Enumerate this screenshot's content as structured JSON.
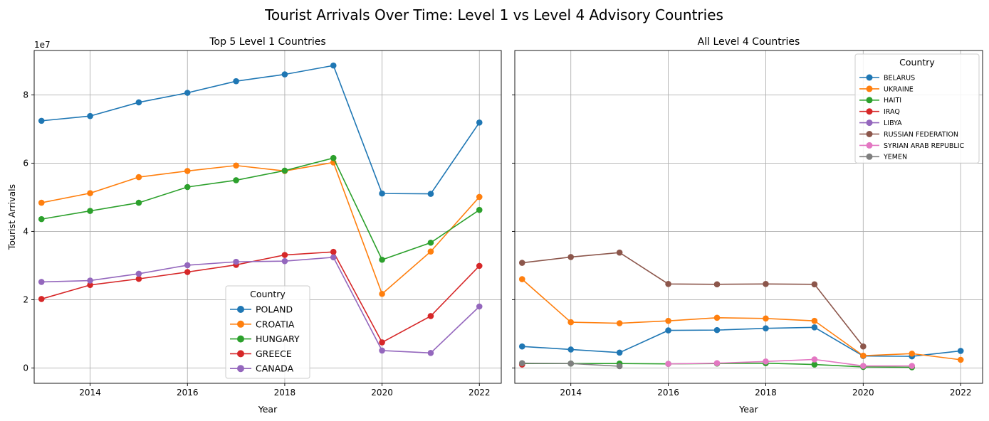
{
  "figure": {
    "title": "Tourist Arrivals Over Time: Level 1 vs Level 4 Advisory Countries"
  },
  "chart_data": [
    {
      "type": "line",
      "title": "Top 5 Level 1 Countries",
      "xlabel": "Year",
      "ylabel": "Tourist Arrivals",
      "y_scale_label": "1e7",
      "xlim": [
        2012.85,
        2022.45
      ],
      "ylim": [
        -0.45,
        9.3
      ],
      "x_ticks": [
        2014,
        2016,
        2018,
        2020,
        2022
      ],
      "y_ticks": [
        0,
        2,
        4,
        6,
        8
      ],
      "grid": true,
      "legend_title": "Country",
      "legend_position": "lower-center",
      "series": [
        {
          "name": "POLAND",
          "color": "#1f77b4",
          "points": [
            [
              2013,
              7.24
            ],
            [
              2014,
              7.38
            ],
            [
              2015,
              7.78
            ],
            [
              2016,
              8.06
            ],
            [
              2017,
              8.4
            ],
            [
              2018,
              8.6
            ],
            [
              2019,
              8.86
            ],
            [
              2020,
              5.11
            ],
            [
              2021,
              5.1
            ],
            [
              2022,
              7.19
            ]
          ]
        },
        {
          "name": "CROATIA",
          "color": "#ff7f0e",
          "points": [
            [
              2013,
              4.84
            ],
            [
              2014,
              5.12
            ],
            [
              2015,
              5.59
            ],
            [
              2016,
              5.77
            ],
            [
              2017,
              5.93
            ],
            [
              2018,
              5.77
            ],
            [
              2019,
              6.02
            ],
            [
              2020,
              2.17
            ],
            [
              2021,
              3.41
            ],
            [
              2022,
              5.01
            ]
          ]
        },
        {
          "name": "HUNGARY",
          "color": "#2ca02c",
          "points": [
            [
              2013,
              4.36
            ],
            [
              2014,
              4.6
            ],
            [
              2015,
              4.84
            ],
            [
              2016,
              5.3
            ],
            [
              2017,
              5.5
            ],
            [
              2018,
              5.78
            ],
            [
              2019,
              6.15
            ],
            [
              2020,
              3.17
            ],
            [
              2021,
              3.67
            ],
            [
              2022,
              4.63
            ]
          ]
        },
        {
          "name": "GREECE",
          "color": "#d62728",
          "points": [
            [
              2013,
              2.02
            ],
            [
              2014,
              2.43
            ],
            [
              2015,
              2.61
            ],
            [
              2016,
              2.81
            ],
            [
              2017,
              3.02
            ],
            [
              2018,
              3.31
            ],
            [
              2019,
              3.4
            ],
            [
              2020,
              0.75
            ],
            [
              2021,
              1.52
            ],
            [
              2022,
              2.99
            ]
          ]
        },
        {
          "name": "CANADA",
          "color": "#9467bd",
          "points": [
            [
              2013,
              2.52
            ],
            [
              2014,
              2.56
            ],
            [
              2015,
              2.76
            ],
            [
              2016,
              3.01
            ],
            [
              2017,
              3.11
            ],
            [
              2018,
              3.13
            ],
            [
              2019,
              3.24
            ],
            [
              2020,
              0.51
            ],
            [
              2021,
              0.44
            ],
            [
              2022,
              1.8
            ]
          ]
        }
      ]
    },
    {
      "type": "line",
      "title": "All Level 4 Countries",
      "xlabel": "Year",
      "ylabel": "",
      "xlim": [
        2012.85,
        2022.45
      ],
      "ylim": [
        -0.45,
        9.3
      ],
      "x_ticks": [
        2014,
        2016,
        2018,
        2020,
        2022
      ],
      "y_ticks": [
        0,
        2,
        4,
        6,
        8
      ],
      "shared_y": true,
      "grid": true,
      "legend_title": "Country",
      "legend_position": "top-right",
      "series": [
        {
          "name": "BELARUS",
          "color": "#1f77b4",
          "points": [
            [
              2013,
              0.63
            ],
            [
              2014,
              0.54
            ],
            [
              2015,
              0.45
            ],
            [
              2016,
              1.1
            ],
            [
              2017,
              1.11
            ],
            [
              2018,
              1.16
            ],
            [
              2019,
              1.19
            ],
            [
              2020,
              0.35
            ],
            [
              2021,
              0.34
            ],
            [
              2022,
              0.5
            ]
          ]
        },
        {
          "name": "UKRAINE",
          "color": "#ff7f0e",
          "points": [
            [
              2013,
              2.6
            ],
            [
              2014,
              1.34
            ],
            [
              2015,
              1.31
            ],
            [
              2016,
              1.38
            ],
            [
              2017,
              1.47
            ],
            [
              2018,
              1.45
            ],
            [
              2019,
              1.38
            ],
            [
              2020,
              0.36
            ],
            [
              2021,
              0.42
            ],
            [
              2022,
              0.24
            ]
          ]
        },
        {
          "name": "HAITI",
          "color": "#2ca02c",
          "points": [
            [
              2013,
              0.13
            ],
            [
              2014,
              0.13
            ],
            [
              2015,
              0.13
            ],
            [
              2016,
              0.12
            ],
            [
              2017,
              0.13
            ],
            [
              2018,
              0.14
            ],
            [
              2019,
              0.1
            ],
            [
              2020,
              0.03
            ],
            [
              2021,
              0.02
            ]
          ]
        },
        {
          "name": "IRAQ",
          "color": "#d62728",
          "points": [
            [
              2013,
              0.1
            ]
          ]
        },
        {
          "name": "LIBYA",
          "color": "#9467bd",
          "points": []
        },
        {
          "name": "RUSSIAN FEDERATION",
          "color": "#8c564b",
          "points": [
            [
              2013,
              3.08
            ],
            [
              2014,
              3.25
            ],
            [
              2015,
              3.38
            ],
            [
              2016,
              2.46
            ],
            [
              2017,
              2.45
            ],
            [
              2018,
              2.46
            ],
            [
              2019,
              2.45
            ],
            [
              2020,
              0.63
            ]
          ]
        },
        {
          "name": "SYRIAN ARAB REPUBLIC",
          "color": "#e377c2",
          "points": [
            [
              2016,
              0.12
            ],
            [
              2017,
              0.14
            ],
            [
              2018,
              0.19
            ],
            [
              2019,
              0.25
            ],
            [
              2020,
              0.06
            ],
            [
              2021,
              0.06
            ]
          ]
        },
        {
          "name": "YEMEN",
          "color": "#7f7f7f",
          "points": [
            [
              2013,
              0.14
            ],
            [
              2014,
              0.13
            ],
            [
              2015,
              0.05
            ]
          ]
        }
      ]
    }
  ]
}
